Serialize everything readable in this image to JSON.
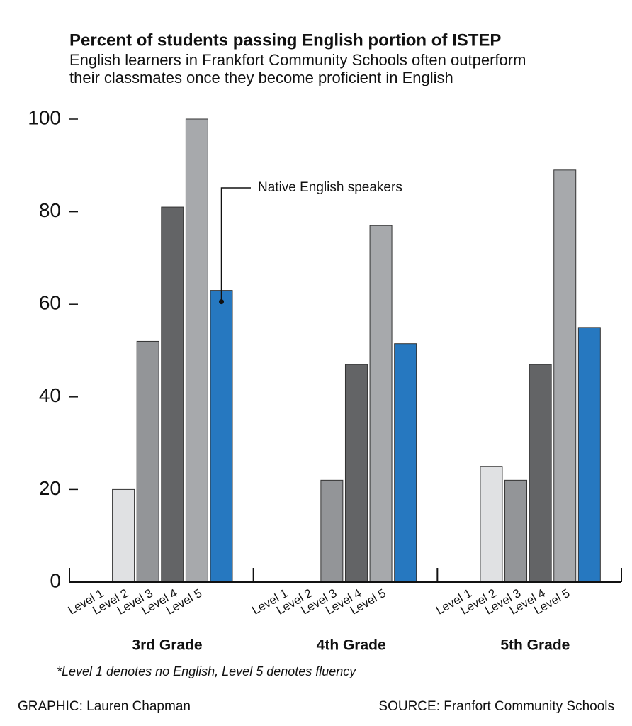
{
  "chart_data": {
    "type": "bar",
    "title": "Percent of students passing English portion of ISTEP",
    "subtitle": [
      "English learners in Frankfort Community Schools often outperform",
      "their classmates once they become proficient in English"
    ],
    "categories": [
      "3rd Grade",
      "4th Grade",
      "5th Grade"
    ],
    "series": [
      {
        "name": "Level 1",
        "color": "#e0e1e3",
        "values": [
          0,
          0,
          0
        ]
      },
      {
        "name": "Level 2",
        "color": "#e0e1e3",
        "values": [
          20,
          0,
          25
        ]
      },
      {
        "name": "Level 3",
        "color": "#939598",
        "values": [
          52,
          22,
          22
        ]
      },
      {
        "name": "Level 4",
        "color": "#636466",
        "values": [
          81,
          47,
          47
        ]
      },
      {
        "name": "Level 5",
        "color": "#a7a9ac",
        "values": [
          100,
          77,
          89
        ]
      },
      {
        "name": "Native English speakers",
        "color": "#2678c0",
        "values": [
          63,
          51.5,
          55
        ]
      }
    ],
    "ylim": [
      0,
      100
    ],
    "yticks": [
      0,
      20,
      40,
      60,
      80,
      100
    ],
    "grid": false,
    "footnote": "*Level 1 denotes no English, Level 5 denotes fluency",
    "credit": "GRAPHIC: Lauren Chapman",
    "source": "SOURCE: Franfort Community Schools"
  }
}
